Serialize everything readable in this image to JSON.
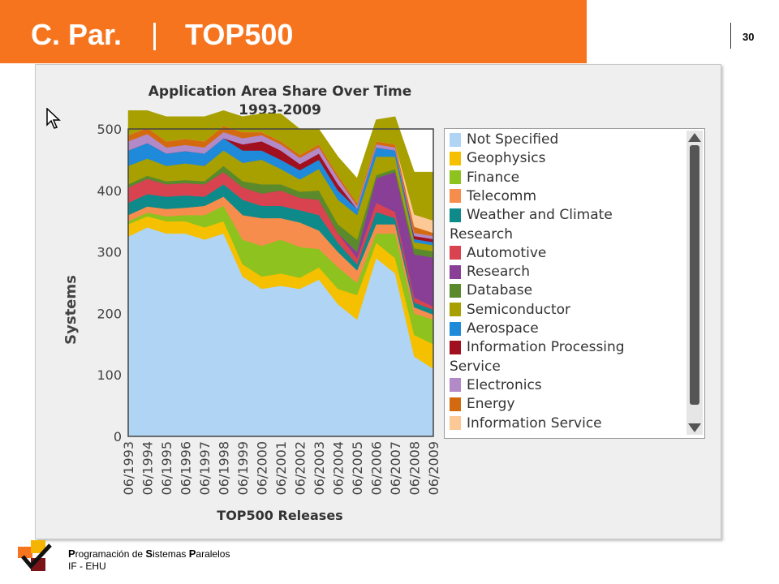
{
  "header": {
    "left": "C. Par.",
    "title": "TOP500"
  },
  "page_number": "30",
  "footer": {
    "line1_parts": [
      "P",
      "rogramación de ",
      "S",
      "istemas ",
      "P",
      "aralelos"
    ],
    "line2": "IF - EHU"
  },
  "chart_data": {
    "type": "area",
    "title": "Application Area Share Over Time",
    "subtitle": "1993-2009",
    "xlabel": "TOP500 Releases",
    "ylabel": "Systems",
    "ylim": [
      0,
      500
    ],
    "yticks": [
      0,
      100,
      200,
      300,
      400,
      500
    ],
    "categories": [
      "06/1993",
      "06/1994",
      "06/1995",
      "06/1996",
      "06/1997",
      "06/1998",
      "06/1999",
      "06/2000",
      "06/2001",
      "06/2002",
      "06/2003",
      "06/2004",
      "06/2005",
      "06/2006",
      "06/2007",
      "06/2008",
      "06/2009"
    ],
    "legend": [
      {
        "label": "Not Specified",
        "color": "#afd4f4",
        "type": "item"
      },
      {
        "label": "Geophysics",
        "color": "#f5c000",
        "type": "item"
      },
      {
        "label": "Finance",
        "color": "#8dc21f",
        "type": "item"
      },
      {
        "label": "Telecomm",
        "color": "#f78d4c",
        "type": "item"
      },
      {
        "label": "Weather and Climate",
        "color": "#0e8a8a",
        "type": "item"
      },
      {
        "label": "Research",
        "type": "header"
      },
      {
        "label": "Automotive",
        "color": "#d9434f",
        "type": "item"
      },
      {
        "label": "Research",
        "color": "#8a3f97",
        "type": "item"
      },
      {
        "label": "Database",
        "color": "#5a8a2b",
        "type": "item"
      },
      {
        "label": "Semiconductor",
        "color": "#a8a000",
        "type": "item"
      },
      {
        "label": "Aerospace",
        "color": "#1e8ad9",
        "type": "item"
      },
      {
        "label": "Information Processing",
        "color": "#a0101e",
        "type": "item"
      },
      {
        "label": "Service",
        "type": "header"
      },
      {
        "label": "Electronics",
        "color": "#b28ac8",
        "type": "item"
      },
      {
        "label": "Energy",
        "color": "#d46a10",
        "type": "item"
      },
      {
        "label": "Information Service",
        "color": "#fbc896",
        "type": "item"
      }
    ],
    "series": [
      {
        "name": "Not Specified",
        "color": "#afd4f4",
        "values": [
          325,
          340,
          330,
          330,
          320,
          330,
          260,
          240,
          245,
          240,
          255,
          215,
          190,
          290,
          265,
          130,
          110
        ]
      },
      {
        "name": "Geophysics",
        "color": "#f5c000",
        "values": [
          20,
          18,
          20,
          20,
          20,
          20,
          20,
          20,
          20,
          18,
          20,
          25,
          40,
          25,
          25,
          35,
          40
        ]
      },
      {
        "name": "Finance",
        "color": "#8dc21f",
        "values": [
          5,
          6,
          8,
          10,
          20,
          25,
          40,
          50,
          55,
          50,
          30,
          35,
          20,
          15,
          40,
          35,
          40
        ]
      },
      {
        "name": "Telecomm",
        "color": "#f78d4c",
        "values": [
          10,
          10,
          12,
          12,
          15,
          15,
          40,
          45,
          35,
          40,
          30,
          25,
          20,
          15,
          15,
          10,
          8
        ]
      },
      {
        "name": "Weather and Climate",
        "color": "#0e8a8a",
        "values": [
          20,
          20,
          20,
          20,
          15,
          20,
          25,
          20,
          20,
          20,
          25,
          15,
          10,
          20,
          10,
          8,
          8
        ]
      },
      {
        "name": "Automotive",
        "color": "#d9434f",
        "values": [
          25,
          25,
          20,
          20,
          20,
          20,
          20,
          20,
          25,
          20,
          25,
          15,
          10,
          15,
          10,
          8,
          5
        ]
      },
      {
        "name": "Research",
        "color": "#8a3f97",
        "values": [
          0,
          0,
          0,
          0,
          0,
          0,
          0,
          0,
          0,
          0,
          0,
          0,
          10,
          40,
          65,
          70,
          80
        ]
      },
      {
        "name": "Database",
        "color": "#5a8a2b",
        "values": [
          5,
          5,
          5,
          5,
          5,
          10,
          10,
          15,
          10,
          10,
          15,
          15,
          20,
          5,
          5,
          10,
          10
        ]
      },
      {
        "name": "Semiconductor",
        "color": "#a8a000",
        "values": [
          30,
          28,
          25,
          27,
          25,
          25,
          30,
          40,
          25,
          20,
          35,
          40,
          40,
          30,
          20,
          10,
          10
        ]
      },
      {
        "name": "Aerospace",
        "color": "#1e8ad9",
        "values": [
          25,
          25,
          20,
          20,
          20,
          20,
          20,
          15,
          15,
          15,
          15,
          15,
          10,
          15,
          10,
          5,
          5
        ]
      },
      {
        "name": "Information Processing",
        "color": "#a0101e",
        "values": [
          0,
          0,
          0,
          0,
          0,
          0,
          10,
          15,
          15,
          10,
          10,
          10,
          0,
          0,
          0,
          5,
          5
        ]
      },
      {
        "name": "Electronics",
        "color": "#b28ac8",
        "values": [
          15,
          15,
          10,
          10,
          10,
          10,
          10,
          10,
          10,
          10,
          10,
          10,
          5,
          5,
          5,
          5,
          5
        ]
      },
      {
        "name": "Energy",
        "color": "#d46a10",
        "values": [
          10,
          10,
          10,
          10,
          10,
          10,
          10,
          5,
          5,
          5,
          5,
          5,
          5,
          5,
          5,
          10,
          5
        ]
      },
      {
        "name": "Information Service",
        "color": "#fbc896",
        "values": [
          0,
          0,
          0,
          0,
          0,
          0,
          0,
          0,
          0,
          0,
          0,
          0,
          0,
          0,
          0,
          20,
          20
        ]
      },
      {
        "name": "",
        "color": "#a8a000",
        "values": [
          40,
          28,
          40,
          36,
          40,
          25,
          25,
          30,
          45,
          42,
          25,
          30,
          40,
          35,
          45,
          69,
          79
        ]
      }
    ]
  }
}
